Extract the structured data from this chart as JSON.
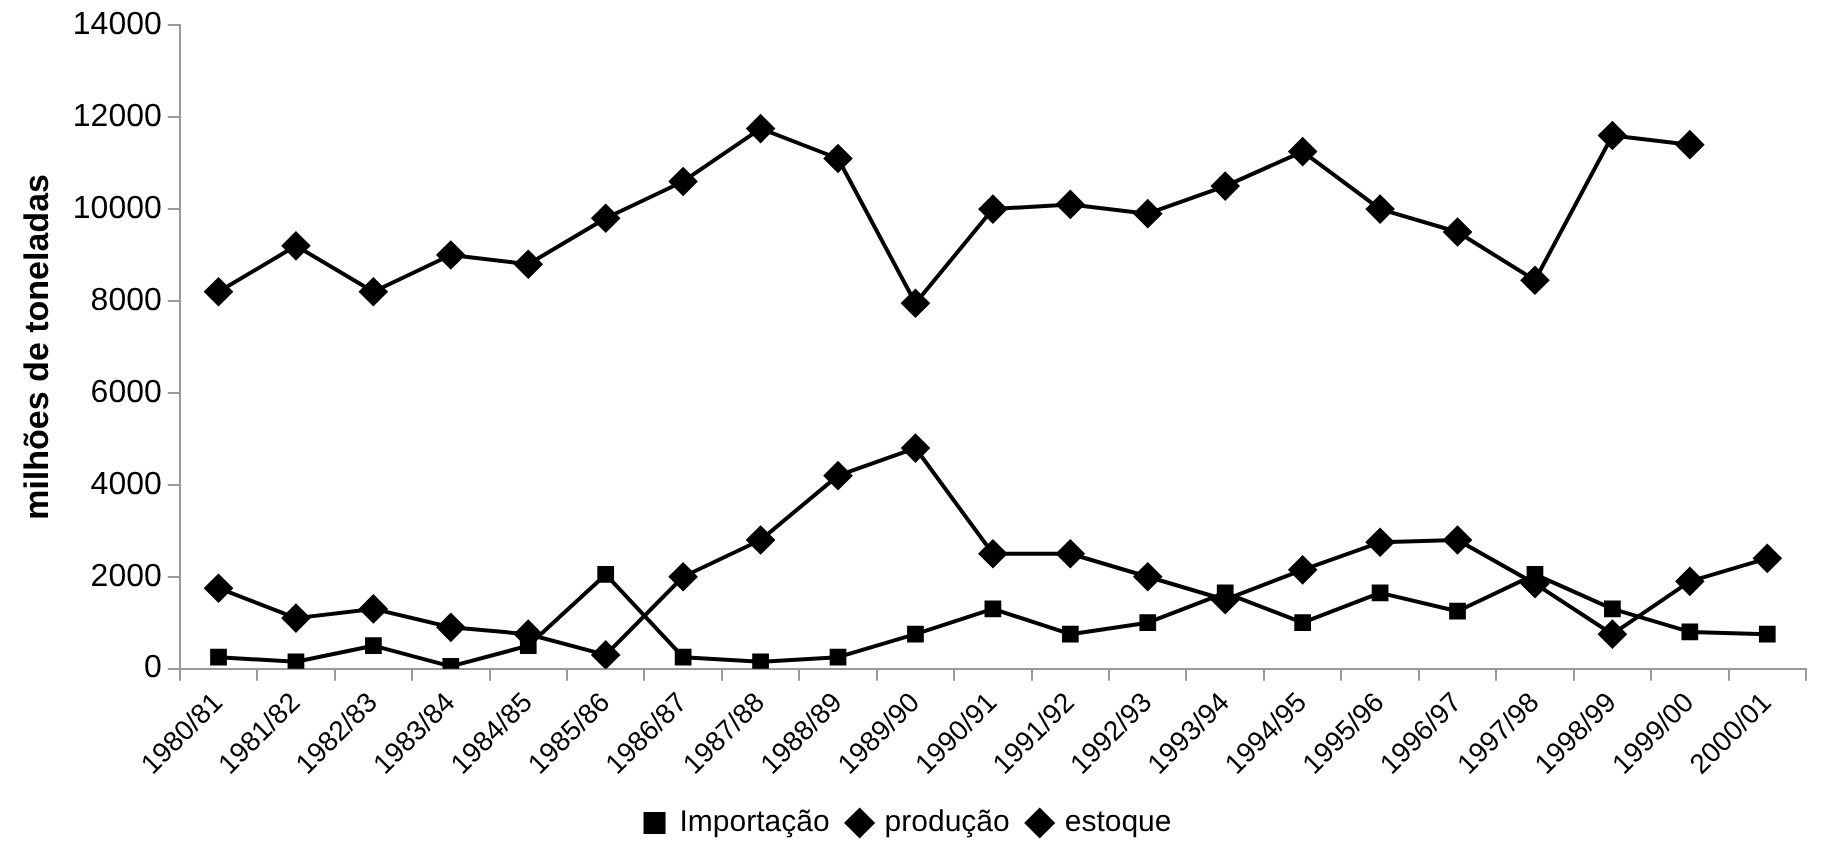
{
  "chart_data": {
    "type": "line",
    "ylabel": "milhões de toneladas",
    "categories": [
      "1980/81",
      "1981/82",
      "1982/83",
      "1983/84",
      "1984/85",
      "1985/86",
      "1986/87",
      "1987/88",
      "1988/89",
      "1989/90",
      "1990/91",
      "1991/92",
      "1992/93",
      "1993/94",
      "1994/95",
      "1995/96",
      "1996/97",
      "1997/98",
      "1998/99",
      "1999/00",
      "2000/01"
    ],
    "series": [
      {
        "name": "Importação",
        "color": "#000000",
        "marker": "square",
        "values": [
          250,
          150,
          500,
          50,
          500,
          2050,
          250,
          150,
          250,
          750,
          1300,
          750,
          1000,
          1650,
          1000,
          1650,
          1250,
          2050,
          1300,
          800,
          750
        ]
      },
      {
        "name": "produção",
        "color": "#000000",
        "marker": "diamond",
        "values": [
          8200,
          9200,
          8200,
          9000,
          8800,
          9800,
          10600,
          11750,
          11100,
          7950,
          10000,
          10100,
          9900,
          10500,
          11250,
          10000,
          9500,
          8450,
          11600,
          11400,
          null
        ]
      },
      {
        "name": "estoque",
        "color": "#000000",
        "marker": "diamond",
        "values": [
          1750,
          1100,
          1300,
          900,
          750,
          300,
          2000,
          2800,
          4200,
          4800,
          2500,
          2500,
          2000,
          1500,
          2150,
          2750,
          2800,
          1850,
          750,
          1900,
          2400
        ]
      }
    ],
    "ylim": [
      0,
      14000
    ],
    "yticks": [
      0,
      2000,
      4000,
      6000,
      8000,
      10000,
      12000,
      14000
    ],
    "grid": false,
    "legend": "bottom",
    "line_style": "solid"
  }
}
